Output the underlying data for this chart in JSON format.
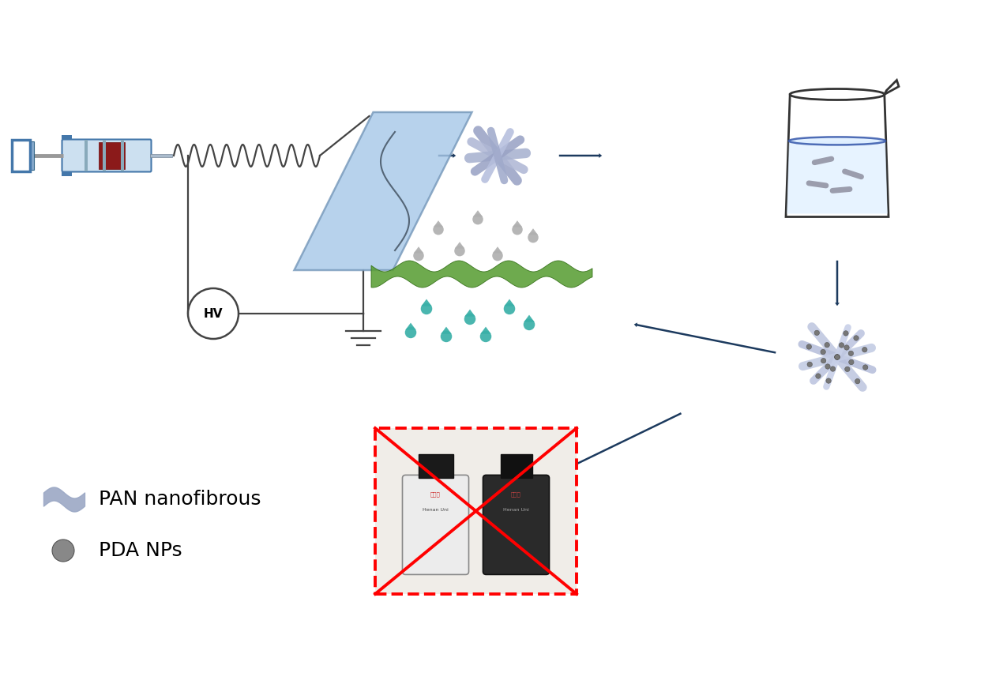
{
  "bg_color": "#ffffff",
  "arrow_color": "#1c3a5e",
  "fiber_color_pan": "#a0aac8",
  "fiber_color_pda": "#b8c4e0",
  "beaker_color": "#333333",
  "drop_color_gray": "#aaaaaa",
  "drop_color_teal": "#3ab0a8",
  "pda_dot_color": "#777777",
  "membrane_color": "#5a9e35",
  "legend_text1": "PAN nanofibrous",
  "legend_text2": "PDA NPs",
  "hv_text": "HV",
  "font_size_legend": 18,
  "syringe_blue": "#6fa8c8",
  "syringe_dark": "#4477aa",
  "wire_color": "#444444",
  "plate_color": "#a8c8e8",
  "plate_edge": "#7799bb",
  "ground_color": "#333333",
  "beaker_water": "#dceeff",
  "beaker_surf": "#4466aa"
}
